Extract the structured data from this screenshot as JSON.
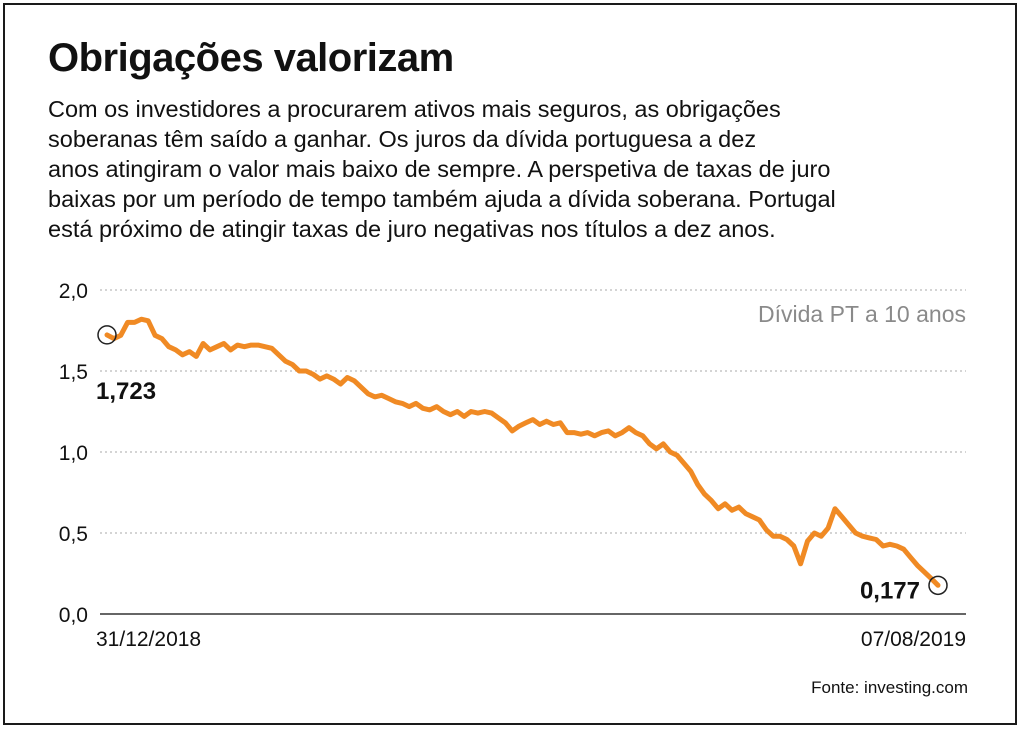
{
  "title": "Obrigações valorizam",
  "description_lines": [
    "Com os investidores a procurarem ativos mais seguros, as obrigações",
    "soberanas têm saído a ganhar. Os juros da dívida portuguesa a dez",
    "anos atingiram o valor mais baixo de sempre. A perspetiva de taxas de juro",
    "baixas por um período de tempo também ajuda a dívida soberana. Portugal",
    "está próximo de atingir taxas de juro negativas nos títulos a dez anos."
  ],
  "source": "Fonte: investing.com",
  "colors": {
    "line": "#f08a24",
    "text": "#111111",
    "grid": "#bbbbbb",
    "legend": "#8a8a8a"
  },
  "chart_data": {
    "type": "line",
    "series": [
      {
        "name": "Dívida PT a 10 anos",
        "values": [
          1.723,
          1.7,
          1.72,
          1.8,
          1.8,
          1.82,
          1.81,
          1.72,
          1.7,
          1.65,
          1.63,
          1.6,
          1.62,
          1.59,
          1.67,
          1.63,
          1.65,
          1.67,
          1.63,
          1.66,
          1.65,
          1.66,
          1.66,
          1.65,
          1.64,
          1.6,
          1.56,
          1.54,
          1.5,
          1.5,
          1.48,
          1.45,
          1.47,
          1.45,
          1.42,
          1.46,
          1.44,
          1.4,
          1.36,
          1.34,
          1.35,
          1.33,
          1.31,
          1.3,
          1.28,
          1.3,
          1.27,
          1.26,
          1.28,
          1.25,
          1.23,
          1.25,
          1.22,
          1.25,
          1.24,
          1.25,
          1.24,
          1.21,
          1.18,
          1.13,
          1.16,
          1.18,
          1.2,
          1.17,
          1.19,
          1.17,
          1.18,
          1.12,
          1.12,
          1.11,
          1.12,
          1.1,
          1.12,
          1.13,
          1.1,
          1.12,
          1.15,
          1.12,
          1.1,
          1.05,
          1.02,
          1.05,
          1.0,
          0.98,
          0.93,
          0.88,
          0.8,
          0.74,
          0.7,
          0.65,
          0.68,
          0.64,
          0.66,
          0.62,
          0.6,
          0.58,
          0.52,
          0.48,
          0.48,
          0.46,
          0.42,
          0.31,
          0.45,
          0.5,
          0.48,
          0.53,
          0.65,
          0.6,
          0.55,
          0.5,
          0.48,
          0.47,
          0.46,
          0.42,
          0.43,
          0.42,
          0.4,
          0.35,
          0.3,
          0.26,
          0.22,
          0.177
        ]
      }
    ],
    "x_start_label": "31/12/2018",
    "x_end_label": "07/08/2019",
    "y_ticks": [
      "0,0",
      "0,5",
      "1,0",
      "1,5",
      "2,0"
    ],
    "y_tick_values": [
      0,
      0.5,
      1.0,
      1.5,
      2.0
    ],
    "ylim": [
      0,
      2.0
    ],
    "grid": true,
    "legend_position": "top-right",
    "annotations": [
      {
        "label": "1,723",
        "value": 1.723,
        "at": "start"
      },
      {
        "label": "0,177",
        "value": 0.177,
        "at": "end"
      }
    ]
  }
}
